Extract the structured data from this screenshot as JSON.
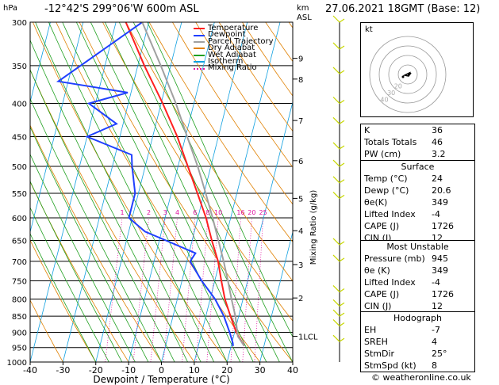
{
  "header": {
    "units": "hPa",
    "location": "-12°42'S 299°06'W 600m ASL",
    "km_label": "km",
    "asl_label": "ASL",
    "datetime": "27.06.2021 18GMT (Base: 12)"
  },
  "credit": "© weatheronline.co.uk",
  "colors": {
    "temperature": "#ff2020",
    "dewpoint": "#2040ff",
    "parcel": "#a0a0a0",
    "dry_adiabat": "#e08000",
    "wet_adiabat": "#20a020",
    "isotherm": "#10a0e0",
    "mixing_ratio": "#e010a0",
    "wind": "#c8d800"
  },
  "legend": [
    {
      "label": "Temperature",
      "color": "#ff2020",
      "dash": ""
    },
    {
      "label": "Dewpoint",
      "color": "#2040ff",
      "dash": ""
    },
    {
      "label": "Parcel Trajectory",
      "color": "#a0a0a0",
      "dash": ""
    },
    {
      "label": "Dry Adiabat",
      "color": "#e08000",
      "dash": ""
    },
    {
      "label": "Wet Adiabat",
      "color": "#20a020",
      "dash": ""
    },
    {
      "label": "Isotherm",
      "color": "#10a0e0",
      "dash": ""
    },
    {
      "label": "Mixing Ratio",
      "color": "#e010a0",
      "dash": "dotted"
    }
  ],
  "chart_data": {
    "type": "line",
    "title": "-12°42'S 299°06'W 600m ASL",
    "xlabel": "Dewpoint / Temperature (°C)",
    "ylabel": "hPa",
    "right_ylabel": "Mixing Ratio (g/kg)",
    "xlim": [
      -40,
      40
    ],
    "ylim": [
      1000,
      300
    ],
    "x_ticks": [
      -40,
      -30,
      -20,
      -10,
      0,
      10,
      20,
      30,
      40
    ],
    "pressure_levels": [
      300,
      350,
      400,
      450,
      500,
      550,
      600,
      650,
      700,
      750,
      800,
      850,
      900,
      950,
      1000
    ],
    "km_ticks": [
      {
        "label": "9",
        "p": 341
      },
      {
        "label": "8",
        "p": 367
      },
      {
        "label": "7",
        "p": 425
      },
      {
        "label": "6",
        "p": 490
      },
      {
        "label": "5",
        "p": 560
      },
      {
        "label": "4",
        "p": 628
      },
      {
        "label": "3",
        "p": 708
      },
      {
        "label": "2",
        "p": 797
      },
      {
        "label": "1LCL",
        "p": 913
      }
    ],
    "mixing_ratio_labels": [
      {
        "label": "1",
        "w": 1
      },
      {
        "label": "2",
        "w": 2
      },
      {
        "label": "3",
        "w": 3
      },
      {
        "label": "4",
        "w": 4
      },
      {
        "label": "6",
        "w": 6
      },
      {
        "label": "8",
        "w": 8
      },
      {
        "label": "10",
        "w": 10
      },
      {
        "label": "16",
        "w": 16
      },
      {
        "label": "20",
        "w": 20
      },
      {
        "label": "25",
        "w": 25
      }
    ],
    "skew_c_per_decade": 50,
    "series": [
      {
        "name": "Temperature",
        "p": [
          945,
          900,
          850,
          800,
          750,
          700,
          650,
          600,
          550,
          500,
          450,
          400,
          350,
          300
        ],
        "t": [
          24,
          20.5,
          17.5,
          14.5,
          12,
          9.5,
          6,
          2.5,
          -2,
          -7,
          -12.5,
          -19.5,
          -28,
          -37
        ]
      },
      {
        "name": "Dewpoint",
        "p": [
          945,
          935,
          900,
          850,
          800,
          750,
          700,
          680,
          650,
          630,
          600,
          550,
          500,
          480,
          450,
          430,
          400,
          385,
          370,
          300
        ],
        "t": [
          20.6,
          20.3,
          18.5,
          15.5,
          11.5,
          6,
          1,
          2,
          -8,
          -15,
          -21,
          -21,
          -24,
          -25,
          -40,
          -32,
          -42,
          -31,
          -53,
          -32
        ]
      },
      {
        "name": "Parcel Trajectory",
        "p": [
          945,
          913,
          850,
          800,
          750,
          700,
          650,
          600,
          550,
          500,
          450,
          400,
          350,
          300
        ],
        "t": [
          24,
          21.3,
          19,
          16.5,
          14,
          11.2,
          8,
          4.5,
          0.5,
          -4,
          -9.5,
          -15.5,
          -23,
          -32
        ]
      }
    ]
  },
  "hodograph": {
    "label": "kt",
    "ring_labels": [
      "40",
      "30",
      "20"
    ]
  },
  "indices": {
    "k_label": "K",
    "k_value": "36",
    "tt_label": "Totals Totals",
    "tt_value": "46",
    "pw_label": "PW (cm)",
    "pw_value": "3.2"
  },
  "surface": {
    "title": "Surface",
    "temp_label": "Temp (°C)",
    "temp_value": "24",
    "dewp_label": "Dewp (°C)",
    "dewp_value": "20.6",
    "theta_label": "θe(K)",
    "theta_value": "349",
    "li_label": "Lifted Index",
    "li_value": "-4",
    "cape_label": "CAPE (J)",
    "cape_value": "1726",
    "cin_label": "CIN (J)",
    "cin_value": "12"
  },
  "most_unstable": {
    "title": "Most Unstable",
    "pres_label": "Pressure (mb)",
    "pres_value": "945",
    "theta_label": "θe (K)",
    "theta_value": "349",
    "li_label": "Lifted Index",
    "li_value": "-4",
    "cape_label": "CAPE (J)",
    "cape_value": "1726",
    "cin_label": "CIN (J)",
    "cin_value": "12"
  },
  "hodo_table": {
    "title": "Hodograph",
    "eh_label": "EH",
    "eh_value": "-7",
    "srehl_label": "SREH",
    "srehl_value": "4",
    "stmdir_label": "StmDir",
    "stmdir_value": "25°",
    "stmspd_label": "StmSpd (kt)",
    "stmspd_value": "8"
  }
}
